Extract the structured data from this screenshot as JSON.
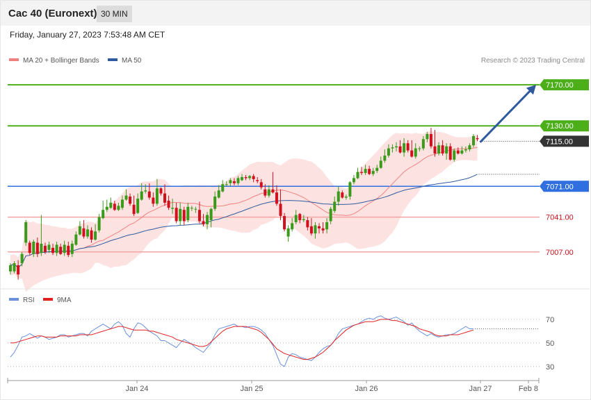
{
  "header": {
    "title": "Cac 40 (Euronext)",
    "timeframe": "30 MIN"
  },
  "datetime": "Friday, January 27, 2023 7:53:48 AM CET",
  "legend": [
    {
      "name": "MA 20 + Bollinger Bands",
      "color": "#f08080"
    },
    {
      "name": "MA 50",
      "color": "#2f5b9e"
    }
  ],
  "credit": "Research © 2023 Trading Central",
  "colors": {
    "up": "#3a9a1a",
    "down": "#d0101c",
    "band": "#fde2e2",
    "ma20": "#f08080",
    "ma50": "#2f5b9e",
    "resistance": "#4caf1a",
    "support_red": "#f4a3a3",
    "pivot": "#2f6fe0",
    "current": "#333333",
    "arrow": "#2f5b9e",
    "rsi": "#6a8fdc",
    "rsi_ma": "#e02020"
  },
  "chart_data": [
    {
      "type": "candlestick",
      "ylim": [
        6975,
        7185
      ],
      "levels": [
        {
          "value": 7170.0,
          "label": "7170.00",
          "kind": "resistance"
        },
        {
          "value": 7130.0,
          "label": "7130.00",
          "kind": "resistance"
        },
        {
          "value": 7115.0,
          "label": "7115.00",
          "kind": "current"
        },
        {
          "value": 7071.0,
          "label": "7071.00",
          "kind": "pivot"
        },
        {
          "value": 7041.0,
          "label": "7041.00",
          "kind": "support"
        },
        {
          "value": 7007.0,
          "label": "7007.00",
          "kind": "support"
        }
      ],
      "candles": [
        [
          6988,
          6994,
          6985,
          6996
        ],
        [
          6988,
          6996,
          6986,
          6998
        ],
        [
          6994,
          6985,
          6980,
          6999
        ],
        [
          6996,
          7005,
          6993,
          7007
        ],
        [
          7016,
          7036,
          7013,
          7038
        ],
        [
          7016,
          7006,
          7004,
          7018
        ],
        [
          7005,
          7017,
          7002,
          7019
        ],
        [
          7016,
          7005,
          7002,
          7021
        ],
        [
          7006,
          7015,
          7003,
          7043
        ],
        [
          7013,
          7007,
          7005,
          7016
        ],
        [
          7009,
          7014,
          7006,
          7017
        ],
        [
          7011,
          7006,
          7004,
          7015
        ],
        [
          7006,
          7014,
          7003,
          7017
        ],
        [
          7012,
          7005,
          7004,
          7015
        ],
        [
          7006,
          7014,
          7003,
          7018
        ],
        [
          7013,
          7004,
          7002,
          7017
        ],
        [
          7005,
          7015,
          7002,
          7018
        ],
        [
          7014,
          7024,
          7013,
          7027
        ],
        [
          7024,
          7032,
          7023,
          7037
        ],
        [
          7030,
          7022,
          7020,
          7038
        ],
        [
          7022,
          7029,
          7020,
          7033
        ],
        [
          7028,
          7019,
          7016,
          7031
        ],
        [
          7019,
          7027,
          7018,
          7034
        ],
        [
          7028,
          7041,
          7026,
          7044
        ],
        [
          7040,
          7048,
          7039,
          7057
        ],
        [
          7048,
          7051,
          7046,
          7058
        ],
        [
          7050,
          7055,
          7049,
          7060
        ],
        [
          7054,
          7048,
          7047,
          7057
        ],
        [
          7048,
          7052,
          7047,
          7055
        ],
        [
          7050,
          7058,
          7048,
          7062
        ],
        [
          7058,
          7062,
          7057,
          7068
        ],
        [
          7061,
          7054,
          7052,
          7064
        ],
        [
          7053,
          7044,
          7042,
          7062
        ],
        [
          7045,
          7059,
          7044,
          7064
        ],
        [
          7058,
          7066,
          7057,
          7074
        ],
        [
          7066,
          7067,
          7064,
          7073
        ],
        [
          7066,
          7060,
          7058,
          7074
        ],
        [
          7060,
          7054,
          7051,
          7065
        ],
        [
          7054,
          7069,
          7052,
          7078
        ],
        [
          7069,
          7064,
          7062,
          7070
        ],
        [
          7064,
          7055,
          7052,
          7073
        ],
        [
          7057,
          7050,
          7048,
          7062
        ],
        [
          7049,
          7050,
          7044,
          7059
        ],
        [
          7050,
          7037,
          7035,
          7055
        ],
        [
          7037,
          7049,
          7033,
          7055
        ],
        [
          7048,
          7037,
          7033,
          7051
        ],
        [
          7038,
          7051,
          7036,
          7055
        ],
        [
          7050,
          7050,
          7047,
          7052
        ],
        [
          7049,
          7049,
          7045,
          7051
        ],
        [
          7048,
          7037,
          7035,
          7056
        ],
        [
          7037,
          7034,
          7032,
          7044
        ],
        [
          7034,
          7043,
          7029,
          7046
        ],
        [
          7038,
          7049,
          7031,
          7050
        ],
        [
          7049,
          7061,
          7047,
          7066
        ],
        [
          7060,
          7067,
          7059,
          7072
        ],
        [
          7066,
          7073,
          7065,
          7077
        ],
        [
          7073,
          7073,
          7071,
          7076
        ],
        [
          7074,
          7077,
          7071,
          7079
        ],
        [
          7076,
          7074,
          7072,
          7079
        ],
        [
          7074,
          7079,
          7072,
          7081
        ],
        [
          7077,
          7080,
          7076,
          7083
        ],
        [
          7080,
          7079,
          7077,
          7082
        ],
        [
          7079,
          7081,
          7077,
          7082
        ],
        [
          7081,
          7078,
          7075,
          7083
        ],
        [
          7077,
          7076,
          7074,
          7080
        ],
        [
          7075,
          7070,
          7068,
          7078
        ],
        [
          7068,
          7062,
          7060,
          7073
        ],
        [
          7062,
          7068,
          7060,
          7072
        ],
        [
          7068,
          7065,
          7064,
          7085
        ],
        [
          7065,
          7054,
          7052,
          7072
        ],
        [
          7054,
          7042,
          7038,
          7068
        ],
        [
          7042,
          7029,
          7027,
          7045
        ],
        [
          7022,
          7030,
          7017,
          7033
        ],
        [
          7029,
          7035,
          7027,
          7040
        ],
        [
          7036,
          7043,
          7034,
          7048
        ],
        [
          7044,
          7038,
          7035,
          7045
        ],
        [
          7038,
          7039,
          7036,
          7043
        ],
        [
          7038,
          7031,
          7028,
          7041
        ],
        [
          7032,
          7025,
          7023,
          7040
        ],
        [
          7025,
          7033,
          7020,
          7036
        ],
        [
          7032,
          7030,
          7025,
          7035
        ],
        [
          7030,
          7028,
          7025,
          7036
        ],
        [
          7029,
          7036,
          7025,
          7040
        ],
        [
          7037,
          7049,
          7034,
          7051
        ],
        [
          7047,
          7056,
          7045,
          7061
        ],
        [
          7056,
          7066,
          7052,
          7071
        ],
        [
          7065,
          7060,
          7059,
          7067
        ],
        [
          7060,
          7061,
          7058,
          7063
        ],
        [
          7061,
          7075,
          7058,
          7076
        ],
        [
          7075,
          7079,
          7073,
          7082
        ],
        [
          7079,
          7085,
          7078,
          7089
        ],
        [
          7085,
          7084,
          7082,
          7090
        ],
        [
          7084,
          7088,
          7082,
          7092
        ],
        [
          7088,
          7083,
          7082,
          7091
        ],
        [
          7083,
          7086,
          7081,
          7089
        ],
        [
          7086,
          7089,
          7084,
          7092
        ],
        [
          7089,
          7096,
          7088,
          7100
        ],
        [
          7096,
          7101,
          7094,
          7107
        ],
        [
          7101,
          7108,
          7099,
          7112
        ],
        [
          7108,
          7109,
          7104,
          7112
        ],
        [
          7109,
          7110,
          7105,
          7114
        ],
        [
          7110,
          7104,
          7103,
          7116
        ],
        [
          7104,
          7113,
          7100,
          7118
        ],
        [
          7113,
          7106,
          7104,
          7116
        ],
        [
          7106,
          7100,
          7099,
          7116
        ],
        [
          7100,
          7108,
          7098,
          7113
        ],
        [
          7108,
          7108,
          7105,
          7110
        ],
        [
          7108,
          7117,
          7106,
          7120
        ],
        [
          7117,
          7122,
          7114,
          7124
        ],
        [
          7122,
          7110,
          7108,
          7128
        ],
        [
          7110,
          7103,
          7100,
          7126
        ],
        [
          7103,
          7111,
          7101,
          7114
        ],
        [
          7111,
          7103,
          7101,
          7116
        ],
        [
          7103,
          7110,
          7097,
          7113
        ],
        [
          7110,
          7097,
          7096,
          7113
        ],
        [
          7097,
          7106,
          7095,
          7108
        ],
        [
          7106,
          7103,
          7102,
          7109
        ],
        [
          7103,
          7106,
          7102,
          7110
        ],
        [
          7106,
          7107,
          7104,
          7110
        ],
        [
          7107,
          7111,
          7105,
          7113
        ],
        [
          7111,
          7120,
          7109,
          7122
        ],
        [
          7118,
          7117,
          7115,
          7121
        ]
      ],
      "arrow": {
        "from_index": 121,
        "from_value": 7114,
        "to_value": 7170
      }
    },
    {
      "type": "line",
      "series": [
        {
          "name": "RSI"
        },
        {
          "name": "9MA"
        }
      ],
      "yticks": [
        70,
        50,
        30
      ],
      "ylim": [
        24,
        77
      ],
      "rsi": [
        38,
        42,
        48,
        55,
        56,
        58,
        56,
        54,
        56,
        55,
        53,
        54,
        55,
        57,
        57,
        55,
        56,
        57,
        58,
        58,
        56,
        60,
        62,
        64,
        66,
        64,
        62,
        66,
        68,
        65,
        58,
        55,
        62,
        67,
        66,
        63,
        60,
        58,
        56,
        52,
        52,
        50,
        48,
        46,
        50,
        53,
        51,
        49,
        46,
        44,
        42,
        46,
        50,
        57,
        62,
        63,
        64,
        65,
        66,
        64,
        64,
        63,
        64,
        64,
        63,
        61,
        58,
        53,
        48,
        40,
        32,
        30,
        38,
        41,
        40,
        38,
        37,
        36,
        35,
        38,
        42,
        45,
        47,
        48,
        52,
        58,
        62,
        63,
        64,
        65,
        66,
        68,
        70,
        71,
        70,
        72,
        73,
        71,
        70,
        71,
        72,
        70,
        68,
        65,
        67,
        63,
        60,
        58,
        56,
        58,
        56,
        55,
        56,
        57,
        57,
        58,
        60,
        62,
        64,
        62,
        62
      ],
      "rsi_ma": [
        50,
        50,
        51,
        52,
        53,
        54,
        55,
        56,
        56,
        55,
        55,
        55,
        55,
        56,
        56,
        56,
        56,
        56,
        57,
        57,
        57,
        57,
        58,
        59,
        60,
        61,
        62,
        63,
        64,
        64,
        63,
        62,
        61,
        61,
        61,
        61,
        60,
        60,
        59,
        58,
        57,
        56,
        55,
        53,
        52,
        51,
        50,
        49,
        48,
        47,
        47,
        48,
        51,
        54,
        57,
        60,
        62,
        63,
        64,
        64,
        64,
        64,
        63,
        62,
        61,
        59,
        56,
        53,
        49,
        45,
        43,
        41,
        40,
        39,
        38,
        37,
        36,
        36,
        37,
        38,
        40,
        42,
        45,
        48,
        52,
        55,
        58,
        61,
        63,
        65,
        66,
        67,
        68,
        68,
        68,
        69,
        70,
        70,
        70,
        69,
        69,
        68,
        67,
        66,
        65,
        64,
        62,
        61,
        60,
        59,
        57,
        56,
        56,
        56,
        57,
        57,
        57,
        58,
        59,
        60,
        61
      ]
    }
  ],
  "xaxis": {
    "labels": [
      "Jan 24",
      "Jan 25",
      "Jan 26",
      "Jan 27",
      "Feb 8"
    ]
  }
}
